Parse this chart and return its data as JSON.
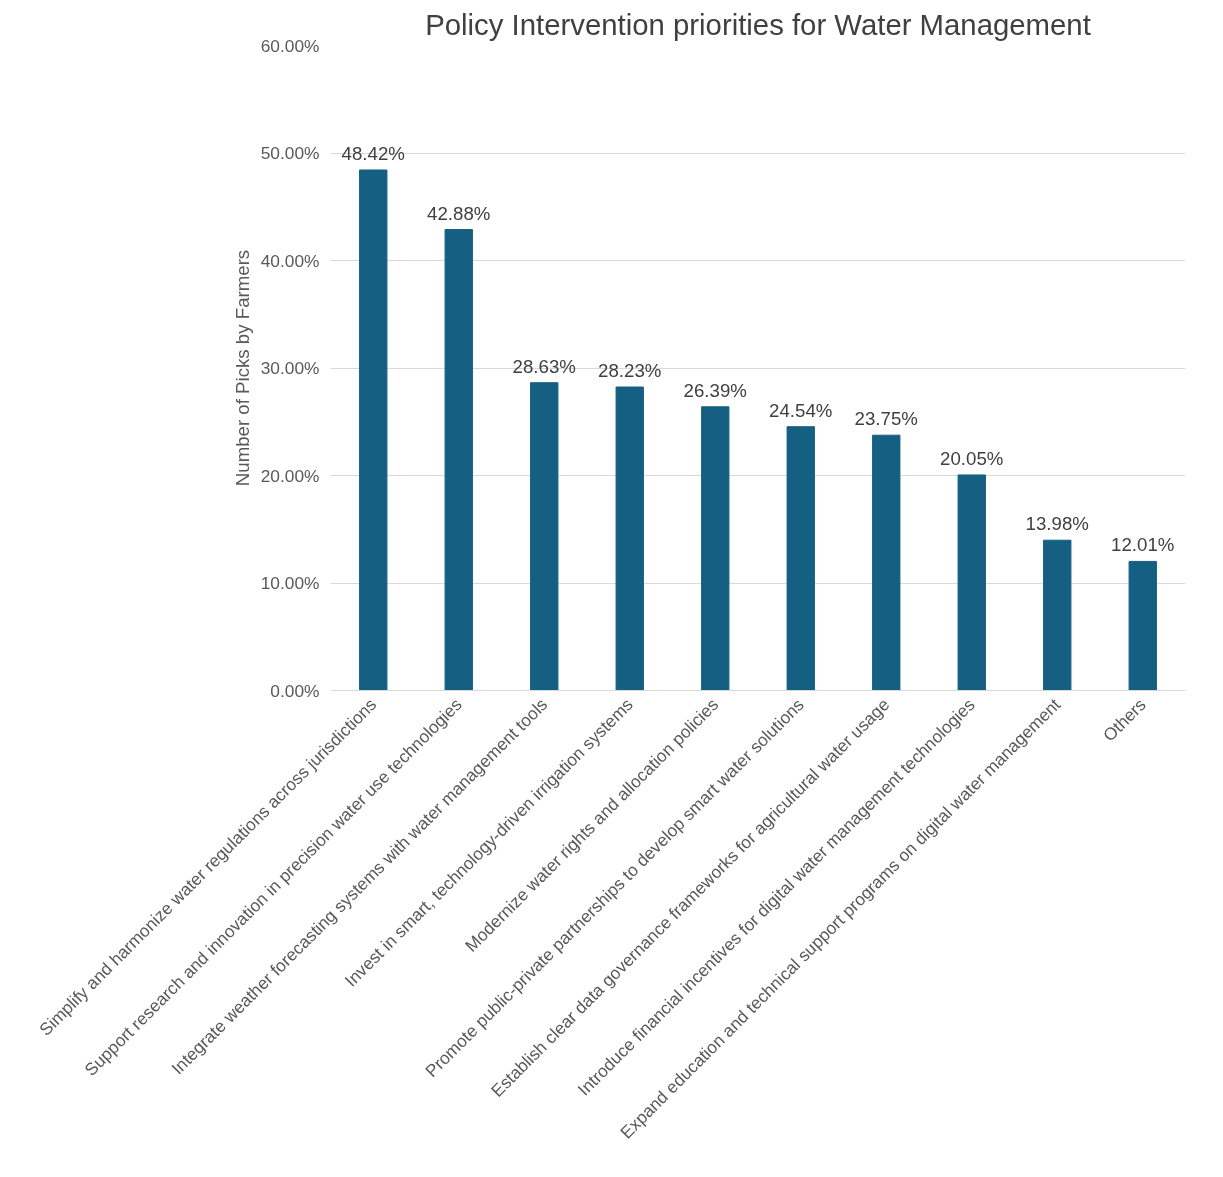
{
  "chart_data": {
    "type": "bar",
    "title": "Policy Intervention priorities for Water Management",
    "ylabel": "Number of Picks by Farmers",
    "categories": [
      "Simplify and harmonize water regulations across jurisdictions",
      "Support research and innovation in precision water use technologies",
      "Integrate weather forecasting systems with water management tools",
      "Invest in smart, technology-driven irrigation systems",
      "Modernize water rights and allocation policies",
      "Promote public-private partnerships to develop smart water solutions",
      "Establish clear data governance frameworks for agricultural water usage",
      "Introduce financial incentives for digital water management technologies",
      "Expand education and technical support programs on digital water management",
      "Others"
    ],
    "values": [
      48.42,
      42.88,
      28.63,
      28.23,
      26.39,
      24.54,
      23.75,
      20.05,
      13.98,
      12.01
    ],
    "value_labels": [
      "48.42%",
      "42.88%",
      "28.63%",
      "28.23%",
      "26.39%",
      "24.54%",
      "23.75%",
      "20.05%",
      "13.98%",
      "12.01%"
    ],
    "color": "#156082",
    "ylim": [
      0,
      60
    ],
    "yticks": [
      {
        "value": 0,
        "label": "0.00%"
      },
      {
        "value": 10,
        "label": "10.00%"
      },
      {
        "value": 20,
        "label": "20.00%"
      },
      {
        "value": 30,
        "label": "30.00%"
      },
      {
        "value": 40,
        "label": "40.00%"
      },
      {
        "value": 50,
        "label": "50.00%"
      },
      {
        "value": 60,
        "label": "60.00%"
      }
    ],
    "grid": "y"
  }
}
